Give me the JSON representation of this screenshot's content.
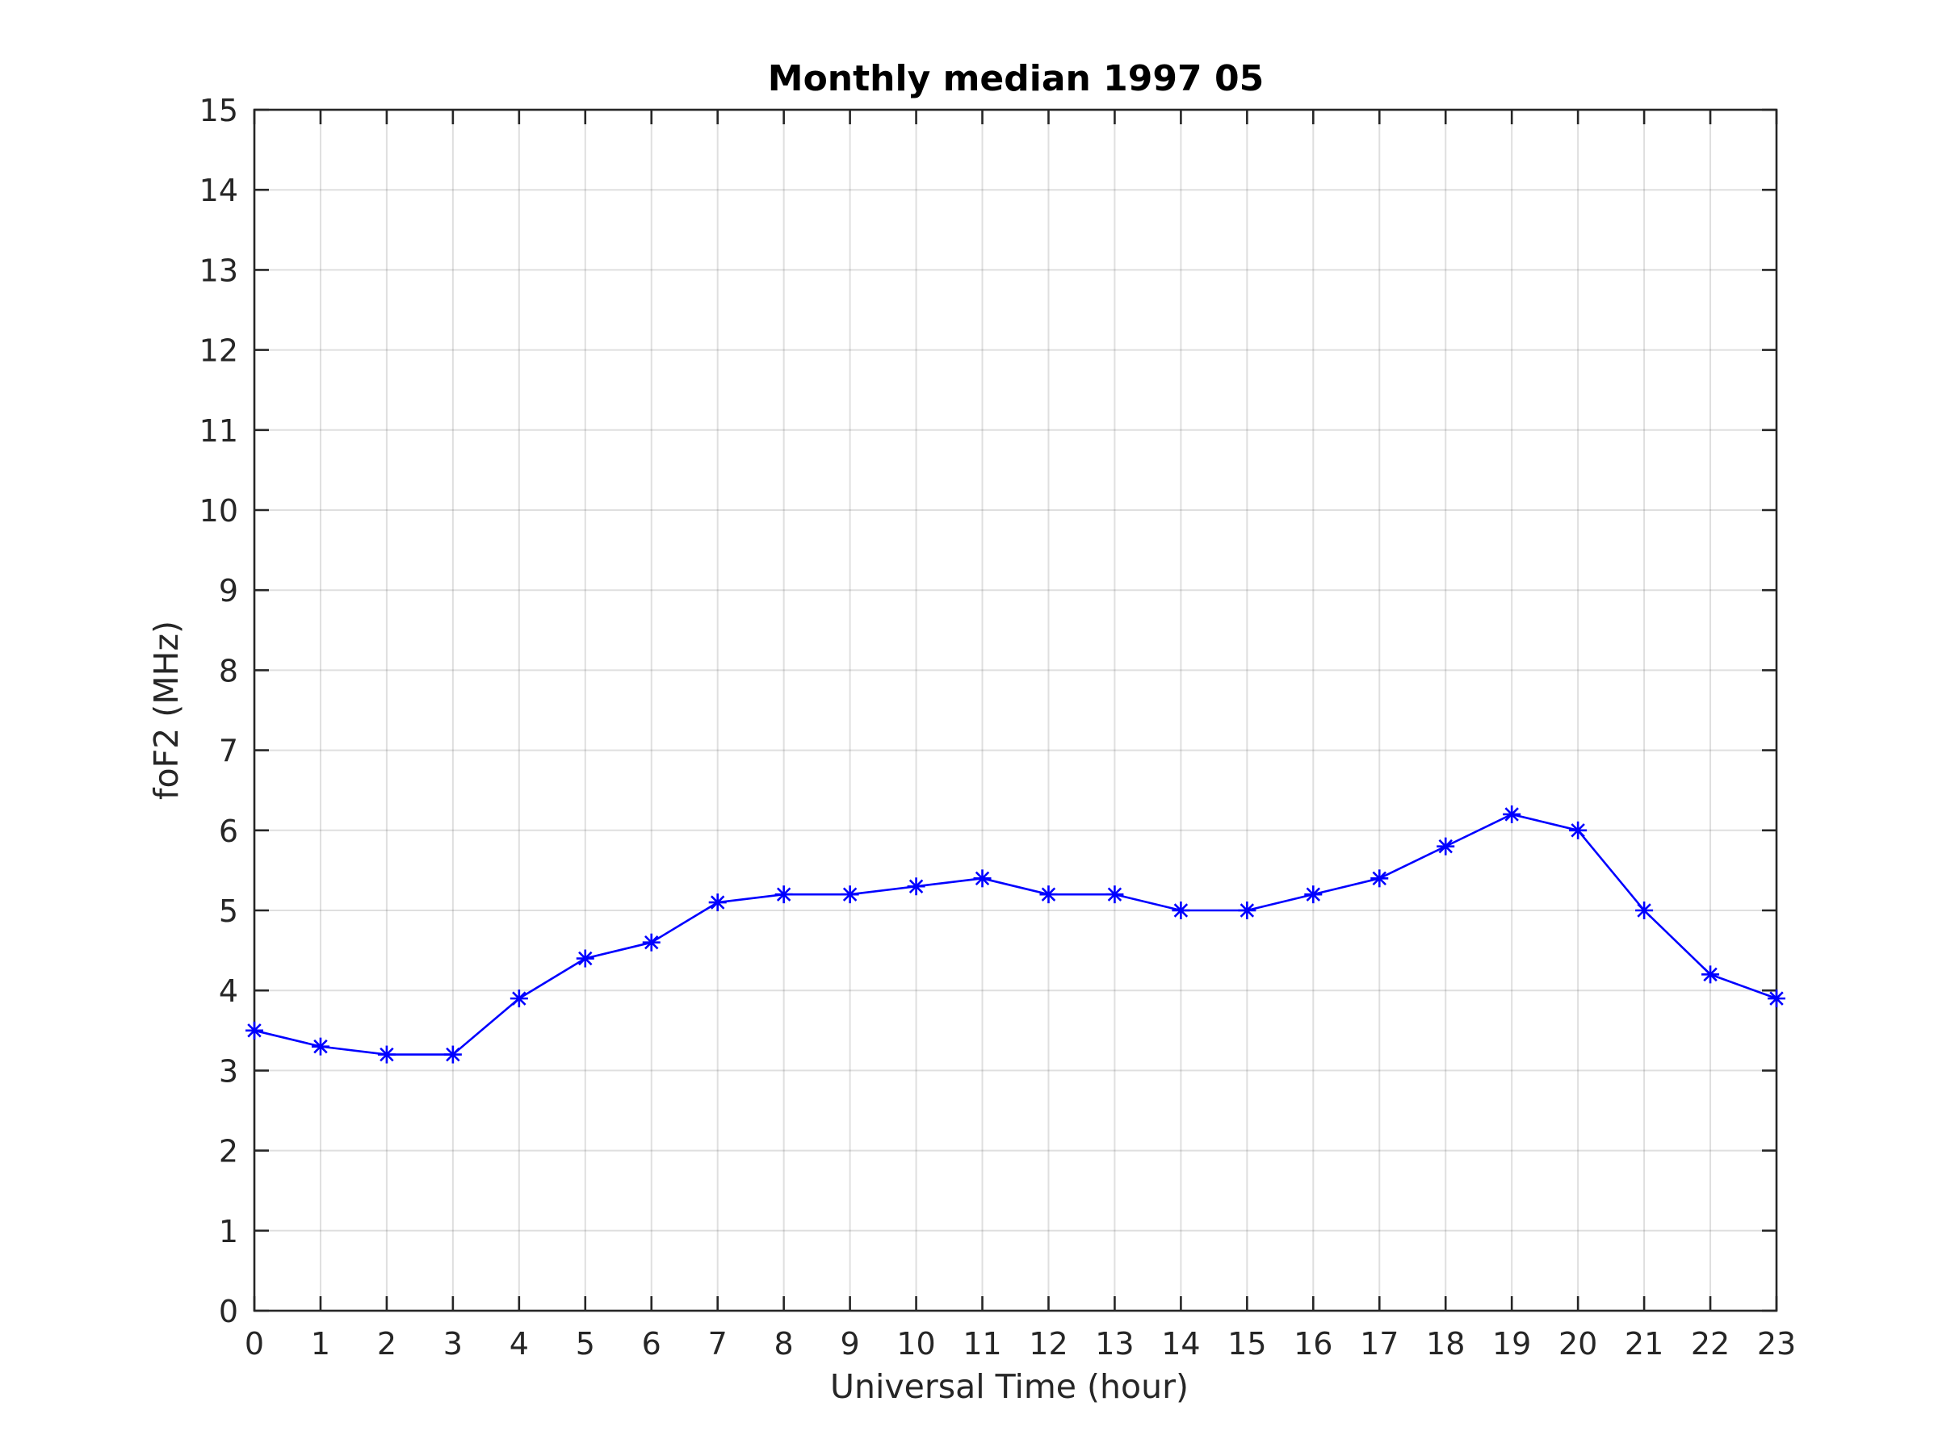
{
  "chart_data": {
    "type": "line",
    "title": "Monthly median 1997 05",
    "xlabel": "Universal Time (hour)",
    "ylabel": "foF2 (MHz)",
    "xlim": [
      0,
      23
    ],
    "ylim": [
      0,
      15
    ],
    "x_ticks": [
      0,
      1,
      2,
      3,
      4,
      5,
      6,
      7,
      8,
      9,
      10,
      11,
      12,
      13,
      14,
      15,
      16,
      17,
      18,
      19,
      20,
      21,
      22,
      23
    ],
    "y_ticks": [
      0,
      1,
      2,
      3,
      4,
      5,
      6,
      7,
      8,
      9,
      10,
      11,
      12,
      13,
      14,
      15
    ],
    "grid": true,
    "marker": "asterisk",
    "line_color": "#0000ff",
    "series": [
      {
        "x": [
          0,
          1,
          2,
          3,
          4,
          5,
          6,
          7,
          8,
          9,
          10,
          11,
          12,
          13,
          14,
          15,
          16,
          17,
          18,
          19,
          20,
          21,
          22,
          23
        ],
        "values": [
          3.5,
          3.3,
          3.2,
          3.2,
          3.9,
          4.4,
          4.6,
          5.1,
          5.2,
          5.2,
          5.3,
          5.4,
          5.2,
          5.2,
          5.0,
          5.0,
          5.2,
          5.4,
          5.8,
          6.2,
          6.0,
          5.0,
          4.2,
          3.9
        ]
      }
    ]
  }
}
